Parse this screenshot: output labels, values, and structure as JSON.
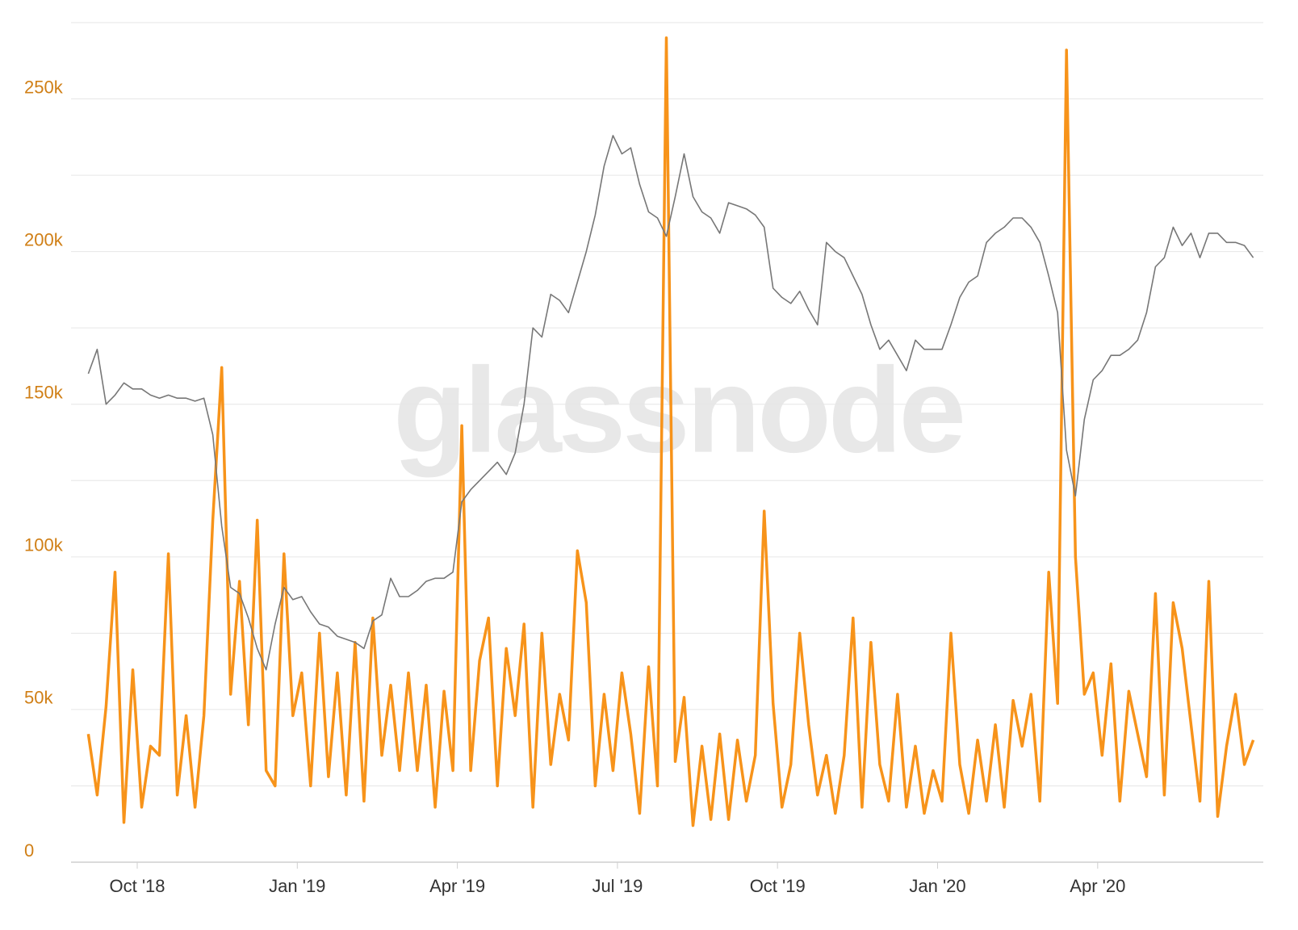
{
  "chart_data": {
    "type": "line",
    "watermark": "glassnode",
    "x": [
      "2018-09",
      "2018-09",
      "2018-09",
      "2018-09",
      "2018-09",
      "2018-09",
      "2018-10",
      "2018-10",
      "2018-10",
      "2018-10",
      "2018-10",
      "2018-10",
      "2018-11",
      "2018-11",
      "2018-11",
      "2018-11",
      "2018-11",
      "2018-11",
      "2018-12",
      "2018-12",
      "2018-12",
      "2018-12",
      "2018-12",
      "2018-12",
      "2019-01",
      "2019-01",
      "2019-01",
      "2019-01",
      "2019-01",
      "2019-01",
      "2019-02",
      "2019-02",
      "2019-02",
      "2019-02",
      "2019-02",
      "2019-02",
      "2019-03",
      "2019-03",
      "2019-03",
      "2019-03",
      "2019-03",
      "2019-03",
      "2019-04",
      "2019-04",
      "2019-04",
      "2019-04",
      "2019-04",
      "2019-04",
      "2019-05",
      "2019-05",
      "2019-05",
      "2019-05",
      "2019-05",
      "2019-05",
      "2019-06",
      "2019-06",
      "2019-06",
      "2019-06",
      "2019-06",
      "2019-06",
      "2019-07",
      "2019-07",
      "2019-07",
      "2019-07",
      "2019-07",
      "2019-07",
      "2019-08",
      "2019-08",
      "2019-08",
      "2019-08",
      "2019-08",
      "2019-08",
      "2019-09",
      "2019-09",
      "2019-09",
      "2019-09",
      "2019-09",
      "2019-09",
      "2019-10",
      "2019-10",
      "2019-10",
      "2019-10",
      "2019-10",
      "2019-10",
      "2019-11",
      "2019-11",
      "2019-11",
      "2019-11",
      "2019-11",
      "2019-11",
      "2019-12",
      "2019-12",
      "2019-12",
      "2019-12",
      "2019-12",
      "2019-12",
      "2020-01",
      "2020-01",
      "2020-01",
      "2020-01",
      "2020-01",
      "2020-01",
      "2020-02",
      "2020-02",
      "2020-02",
      "2020-02",
      "2020-02",
      "2020-02",
      "2020-03",
      "2020-03",
      "2020-03",
      "2020-03",
      "2020-03",
      "2020-03",
      "2020-04",
      "2020-04",
      "2020-04",
      "2020-04",
      "2020-04",
      "2020-04",
      "2020-05",
      "2020-05",
      "2020-05",
      "2020-05",
      "2020-05",
      "2020-05",
      "2020-06",
      "2020-06",
      "2020-06",
      "2020-06",
      "2020-06",
      "2020-06"
    ],
    "series": [
      {
        "color": "#f7931a",
        "width": 3.5,
        "values": [
          42000,
          22000,
          51000,
          95000,
          13000,
          63000,
          18000,
          38000,
          35000,
          101000,
          22000,
          48000,
          18000,
          48000,
          112000,
          162000,
          55000,
          92000,
          45000,
          112000,
          30000,
          25000,
          101000,
          48000,
          62000,
          25000,
          75000,
          28000,
          62000,
          22000,
          72000,
          20000,
          80000,
          35000,
          58000,
          30000,
          62000,
          30000,
          58000,
          18000,
          56000,
          30000,
          143000,
          30000,
          66000,
          80000,
          25000,
          70000,
          48000,
          78000,
          18000,
          75000,
          32000,
          55000,
          40000,
          102000,
          85000,
          25000,
          55000,
          30000,
          62000,
          42000,
          16000,
          64000,
          25000,
          270000,
          33000,
          54000,
          12000,
          38000,
          14000,
          42000,
          14000,
          40000,
          20000,
          35000,
          115000,
          52000,
          18000,
          32000,
          75000,
          45000,
          22000,
          35000,
          16000,
          35000,
          80000,
          18000,
          72000,
          32000,
          20000,
          55000,
          18000,
          38000,
          16000,
          30000,
          20000,
          75000,
          32000,
          16000,
          40000,
          20000,
          45000,
          18000,
          53000,
          38000,
          55000,
          20000,
          95000,
          52000,
          266000,
          100000,
          55000,
          62000,
          35000,
          65000,
          20000,
          56000,
          42000,
          28000,
          88000,
          22000,
          85000,
          70000,
          45000,
          20000,
          92000,
          15000,
          38000,
          55000,
          32000,
          40000
        ]
      },
      {
        "color": "#777777",
        "width": 1.6,
        "values": [
          160000,
          168000,
          150000,
          153000,
          157000,
          155000,
          155000,
          153000,
          152000,
          153000,
          152000,
          152000,
          151000,
          152000,
          140000,
          110000,
          90000,
          88000,
          80000,
          70000,
          63000,
          78000,
          90000,
          86000,
          87000,
          82000,
          78000,
          77000,
          74000,
          73000,
          72000,
          70000,
          79000,
          81000,
          93000,
          87000,
          87000,
          89000,
          92000,
          93000,
          93000,
          95000,
          118000,
          122000,
          125000,
          128000,
          131000,
          127000,
          134000,
          150000,
          175000,
          172000,
          186000,
          184000,
          180000,
          190000,
          200000,
          212000,
          228000,
          238000,
          232000,
          234000,
          222000,
          213000,
          211000,
          205000,
          218000,
          232000,
          218000,
          213000,
          211000,
          206000,
          216000,
          215000,
          214000,
          212000,
          208000,
          188000,
          185000,
          183000,
          187000,
          181000,
          176000,
          203000,
          200000,
          198000,
          192000,
          186000,
          176000,
          168000,
          171000,
          166000,
          161000,
          171000,
          168000,
          168000,
          168000,
          176000,
          185000,
          190000,
          192000,
          203000,
          206000,
          208000,
          211000,
          211000,
          208000,
          203000,
          192000,
          180000,
          135000,
          120000,
          145000,
          158000,
          161000,
          166000,
          166000,
          168000,
          171000,
          180000,
          195000,
          198000,
          208000,
          202000,
          206000,
          198000,
          206000,
          206000,
          203000,
          203000,
          202000,
          198000
        ]
      }
    ],
    "ylim": [
      0,
      275000
    ],
    "yticks": [
      0,
      {
        "value": 50000,
        "label": "50k"
      },
      {
        "value": 100000,
        "label": "100k"
      },
      {
        "value": 150000,
        "label": "150k"
      },
      {
        "value": 200000,
        "label": "200k"
      },
      {
        "value": 250000,
        "label": "250k"
      }
    ],
    "ygrid": [
      25000,
      50000,
      75000,
      100000,
      125000,
      150000,
      175000,
      200000,
      225000,
      250000,
      275000
    ],
    "xticks": [
      {
        "value": "2018-10",
        "label": "Oct '18"
      },
      {
        "value": "2019-01",
        "label": "Jan '19"
      },
      {
        "value": "2019-04",
        "label": "Apr '19"
      },
      {
        "value": "2019-07",
        "label": "Jul '19"
      },
      {
        "value": "2019-10",
        "label": "Oct '19"
      },
      {
        "value": "2020-01",
        "label": "Jan '20"
      },
      {
        "value": "2020-04",
        "label": "Apr '20"
      }
    ]
  }
}
